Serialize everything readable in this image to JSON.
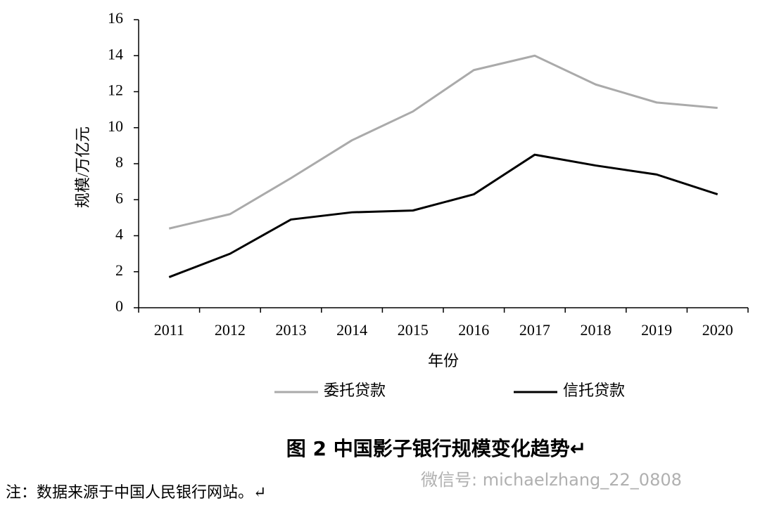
{
  "chart_data": {
    "type": "line",
    "x_label": "年份",
    "y_label": "规模/万亿元",
    "categories": [
      "2011",
      "2012",
      "2013",
      "2014",
      "2015",
      "2016",
      "2017",
      "2018",
      "2019",
      "2020"
    ],
    "series": [
      {
        "name": "委托贷款",
        "color": "#aaaaaa",
        "values": [
          4.4,
          5.2,
          7.2,
          9.3,
          10.9,
          13.2,
          14.0,
          12.4,
          11.4,
          11.1
        ]
      },
      {
        "name": "信托贷款",
        "color": "#000000",
        "values": [
          1.7,
          3.0,
          4.9,
          5.3,
          5.4,
          6.3,
          8.5,
          7.9,
          7.4,
          6.3
        ]
      }
    ],
    "ylim": [
      0,
      16
    ],
    "yticks": [
      0,
      2,
      4,
      6,
      8,
      10,
      12,
      14,
      16
    ],
    "grid": false,
    "legend": "bottom"
  },
  "caption": "图 2  中国影子银行规模变化趋势↵",
  "watermark": "微信号: michaelzhang_22_0808",
  "note": "注：数据来源于中国人民银行网站。↵"
}
